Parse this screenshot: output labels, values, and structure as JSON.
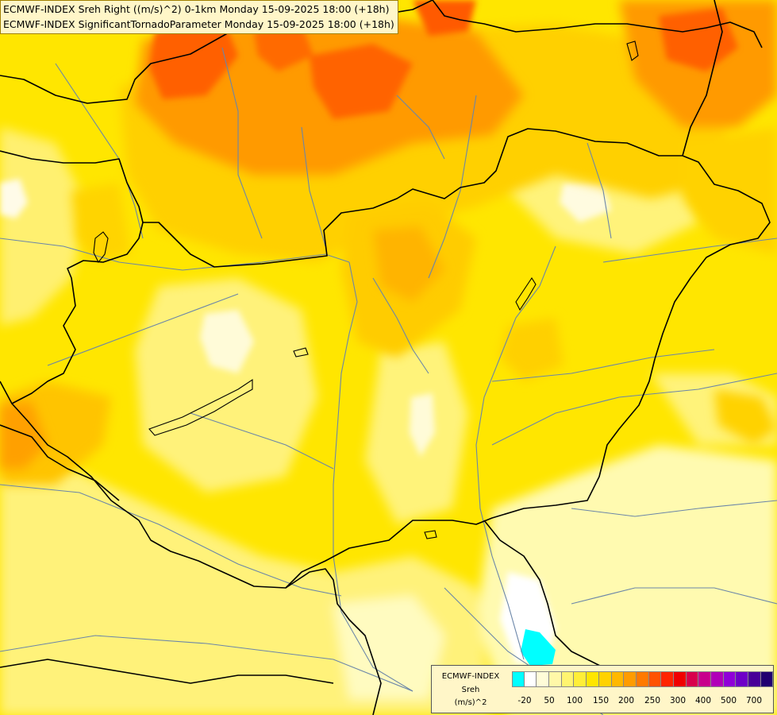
{
  "header": {
    "line1": "ECMWF-INDEX Sreh Right ((m/s)^2) 0-1km Monday 15-09-2025 18:00 (+18h)",
    "line2": "ECMWF-INDEX SignificantTornadoParameter Monday 15-09-2025 18:00 (+18h)"
  },
  "legend": {
    "model": "ECMWF-INDEX",
    "variable": "Sreh",
    "unit": "(m/s)^2",
    "colors": [
      "#00ffff",
      "#ffffff",
      "#fffcd8",
      "#fff8a8",
      "#fff470",
      "#ffee38",
      "#ffe600",
      "#ffd200",
      "#ffb800",
      "#ff9c00",
      "#ff7a00",
      "#ff5200",
      "#ff2400",
      "#f00000",
      "#d8004c",
      "#c8008c",
      "#b000b8",
      "#9000d8",
      "#6e00c8",
      "#480098",
      "#200070"
    ],
    "ticks": [
      "-20",
      "50",
      "100",
      "150",
      "200",
      "250",
      "300",
      "400",
      "500",
      "700"
    ]
  },
  "map": {
    "field_colors": {
      "base": "#ffe600",
      "pale": "#fffaa0",
      "light": "#fff070",
      "deep": "#ffd200",
      "amber": "#ffb000",
      "orange": "#ff8a00",
      "red_orange": "#ff5a00",
      "white": "#ffffff",
      "cyan": "#00ffff"
    },
    "line_colors": {
      "border": "#000000",
      "river": "#6b86a8"
    }
  }
}
